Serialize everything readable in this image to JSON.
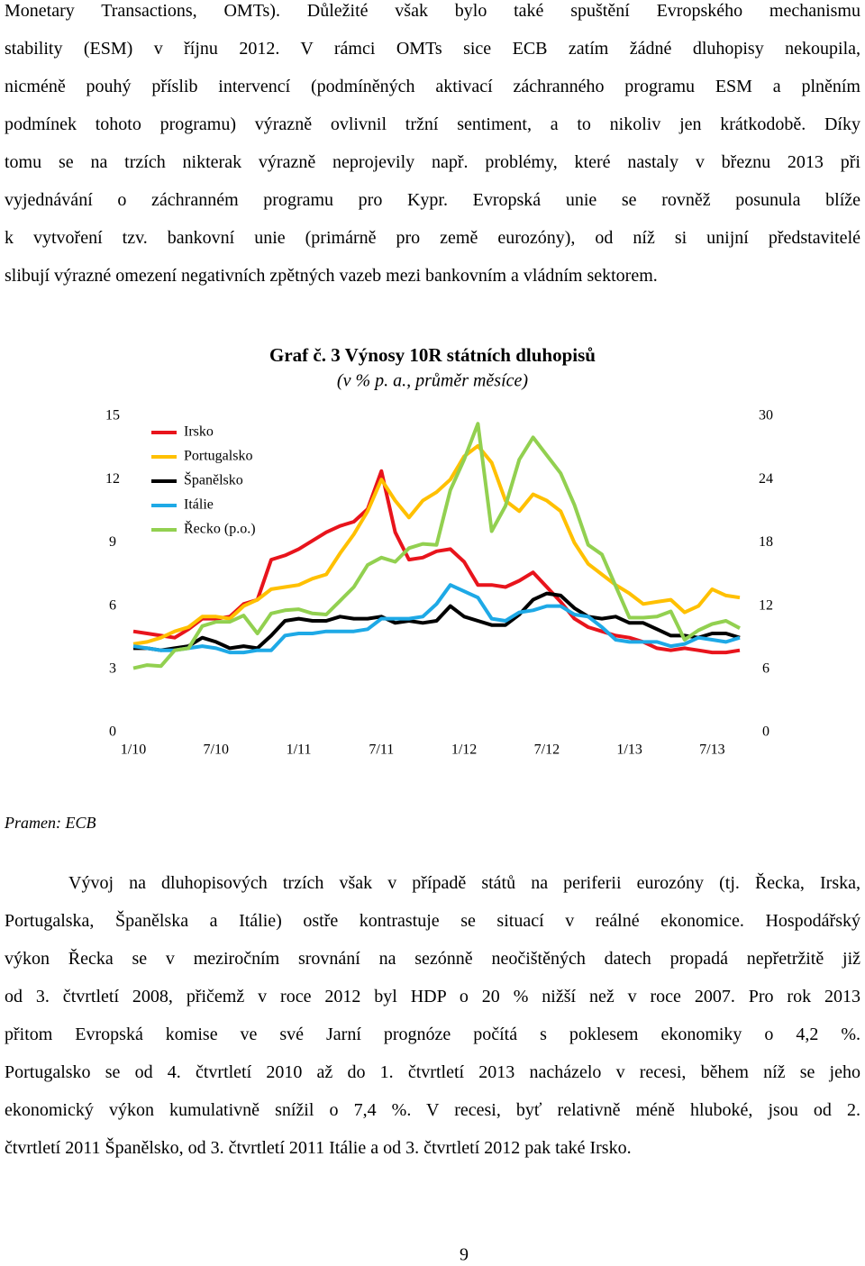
{
  "document": {
    "paragraph1": [
      "Monetary Transactions, OMTs). Důležité však bylo také spuštění Evropského mechanismu",
      "stability (ESM) v říjnu 2012. V rámci OMTs sice ECB zatím žádné dluhopisy nekoupila,",
      "nicméně pouhý příslib intervencí (podmíněných aktivací záchranného programu ESM a plněním",
      "podmínek tohoto programu) výrazně ovlivnil tržní sentiment, a to nikoliv jen krátkodobě. Díky",
      "tomu se na trzích nikterak výrazně neprojevily např. problémy, které nastaly v březnu 2013 při",
      "vyjednávání o záchranném programu pro Kypr. Evropská unie se rovněž posunula blíže",
      "k vytvoření tzv. bankovní unie (primárně pro země eurozóny), od níž si unijní představitelé",
      "slibují výrazné omezení negativních zpětných vazeb mezi bankovním a vládním sektorem."
    ],
    "source": "Pramen: ECB",
    "paragraph2": [
      "Vývoj na dluhopisových trzích však v případě států na periferii eurozóny (tj. Řecka, Irska,",
      "Portugalska, Španělska a Itálie) ostře kontrastuje se situací v reálné ekonomice. Hospodářský",
      "výkon Řecka se v meziročním srovnání na sezónně neočištěných datech propadá nepřetržitě již",
      "od 3. čtvrtletí 2008, přičemž v roce 2012 byl HDP o 20 % nižší než v roce 2007. Pro rok 2013",
      "přitom Evropská komise ve své Jarní prognóze počítá s poklesem ekonomiky o 4,2 %.",
      "Portugalsko se od 4. čtvrtletí 2010 až do 1. čtvrtletí 2013 nacházelo v recesi, během níž se jeho",
      "ekonomický výkon kumulativně snížil o 7,4 %. V recesi, byť relativně méně hluboké, jsou od 2.",
      "čtvrtletí 2011 Španělsko, od 3. čtvrtletí 2011 Itálie a od 3. čtvrtletí 2012 pak také Irsko."
    ],
    "page_number": "9"
  },
  "chart_data": {
    "type": "line",
    "title": "Graf č. 3 Výnosy 10R státních dluhopisů",
    "subtitle": "(v % p. a., průměr měsíce)",
    "categories": [
      "1/10",
      null,
      null,
      null,
      null,
      null,
      "7/10",
      null,
      null,
      null,
      null,
      null,
      "1/11",
      null,
      null,
      null,
      null,
      null,
      "7/11",
      null,
      null,
      null,
      null,
      null,
      "1/12",
      null,
      null,
      null,
      null,
      null,
      "7/12",
      null,
      null,
      null,
      null,
      null,
      "1/13",
      null,
      null,
      null,
      null,
      null,
      "7/13",
      null,
      null
    ],
    "ylim": [
      0,
      15
    ],
    "yticks": [
      0,
      3,
      6,
      9,
      12,
      15
    ],
    "y2lim": [
      0,
      30
    ],
    "y2ticks": [
      0,
      6,
      12,
      18,
      24,
      30
    ],
    "grid": false,
    "legend": "top-left",
    "series": [
      {
        "name": "Irsko",
        "color": "#e8141c",
        "values": [
          4.8,
          4.7,
          4.6,
          4.5,
          4.9,
          5.4,
          5.4,
          5.5,
          6.1,
          6.3,
          8.2,
          8.4,
          8.7,
          9.1,
          9.5,
          9.8,
          10.0,
          10.6,
          12.4,
          9.5,
          8.2,
          8.3,
          8.6,
          8.7,
          8.1,
          7.0,
          7.0,
          6.9,
          7.2,
          7.6,
          6.9,
          6.2,
          5.4,
          5.0,
          4.8,
          4.6,
          4.5,
          4.3,
          4.0,
          3.9,
          4.0,
          3.9,
          3.8,
          3.8,
          3.9
        ]
      },
      {
        "name": "Portugalsko",
        "color": "#ffc000",
        "values": [
          4.2,
          4.3,
          4.5,
          4.8,
          5.0,
          5.5,
          5.5,
          5.4,
          6.0,
          6.3,
          6.8,
          6.9,
          7.0,
          7.3,
          7.5,
          8.5,
          9.4,
          10.5,
          12.0,
          11.0,
          10.2,
          11.0,
          11.4,
          12.0,
          13.1,
          13.6,
          12.8,
          11.0,
          10.5,
          11.3,
          11.0,
          10.5,
          9.0,
          8.0,
          7.5,
          7.0,
          6.6,
          6.1,
          6.2,
          6.3,
          5.7,
          6.0,
          6.8,
          6.5,
          6.4
        ]
      },
      {
        "name": "Španělsko",
        "color": "#000000",
        "values": [
          4.0,
          4.0,
          3.9,
          4.0,
          4.1,
          4.5,
          4.3,
          4.0,
          4.1,
          4.0,
          4.6,
          5.3,
          5.4,
          5.3,
          5.3,
          5.5,
          5.4,
          5.4,
          5.5,
          5.2,
          5.3,
          5.2,
          5.3,
          6.0,
          5.5,
          5.3,
          5.1,
          5.1,
          5.6,
          6.3,
          6.6,
          6.5,
          5.9,
          5.5,
          5.4,
          5.5,
          5.2,
          5.2,
          4.9,
          4.6,
          4.6,
          4.5,
          4.7,
          4.7,
          4.5
        ]
      },
      {
        "name": "Itálie",
        "color": "#1ea9e6",
        "values": [
          4.1,
          4.0,
          3.9,
          3.9,
          4.0,
          4.1,
          4.0,
          3.8,
          3.8,
          3.9,
          3.9,
          4.6,
          4.7,
          4.7,
          4.8,
          4.8,
          4.8,
          4.9,
          5.4,
          5.4,
          5.4,
          5.5,
          6.1,
          7.0,
          6.7,
          6.4,
          5.4,
          5.3,
          5.7,
          5.8,
          6.0,
          6.0,
          5.6,
          5.5,
          5.0,
          4.4,
          4.3,
          4.3,
          4.3,
          4.1,
          4.2,
          4.5,
          4.4,
          4.3,
          4.5
        ]
      },
      {
        "name": "Řecko (p.o.)",
        "color": "#92d050",
        "axis": "y2",
        "values": [
          6.1,
          6.4,
          6.3,
          7.8,
          8.0,
          10.1,
          10.5,
          10.5,
          11.1,
          9.4,
          11.3,
          11.6,
          11.7,
          11.3,
          11.2,
          12.5,
          13.8,
          15.9,
          16.6,
          16.2,
          17.5,
          17.9,
          17.8,
          23.0,
          25.9,
          29.3,
          19.1,
          21.5,
          25.9,
          28.0,
          26.3,
          24.6,
          21.6,
          17.8,
          16.9,
          13.9,
          10.9,
          10.9,
          11.0,
          11.5,
          8.8,
          9.7,
          10.3,
          10.6,
          9.9
        ]
      }
    ]
  }
}
